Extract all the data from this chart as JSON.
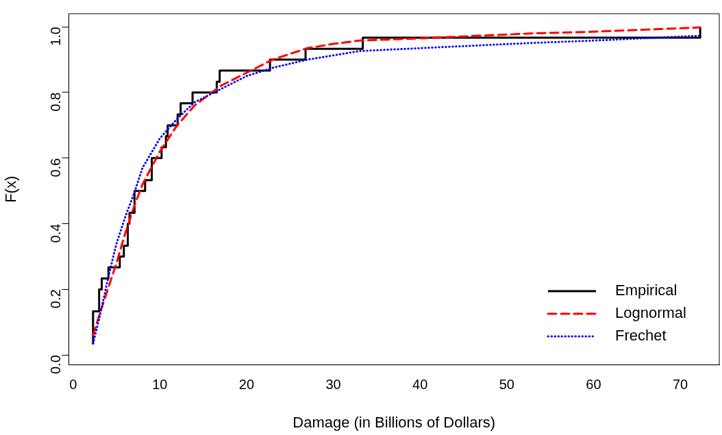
{
  "chart_data": {
    "type": "line",
    "xlabel": "Damage (in Billions of Dollars)",
    "ylabel": "F(x)",
    "xlim": [
      -0.5,
      74.5
    ],
    "xticks": [
      0,
      10,
      20,
      30,
      40,
      50,
      60,
      70
    ],
    "ylim": [
      -0.03,
      1.04
    ],
    "yticks": [
      {
        "value": 0,
        "label": "0.0"
      },
      0.2,
      0.4,
      0.6,
      0.8,
      {
        "value": 1,
        "label": "1.0"
      }
    ],
    "grid": false,
    "legend": "bottom right",
    "marker": "none",
    "series": [
      {
        "name": "Empirical",
        "type": "step",
        "color": "#000000",
        "line_style": "solid",
        "x": [
          2.3,
          2.3,
          3.0,
          3.3,
          4.07,
          5.38,
          5.85,
          6.3,
          6.5,
          7.08,
          8.3,
          9.07,
          10.2,
          10.7,
          10.9,
          12.05,
          12.4,
          13.77,
          16.56,
          16.9,
          22.7,
          26.8,
          33.4,
          72.3
        ],
        "values": [
          0.033,
          0.133,
          0.2,
          0.233,
          0.267,
          0.3,
          0.333,
          0.4,
          0.433,
          0.5,
          0.533,
          0.6,
          0.633,
          0.667,
          0.7,
          0.733,
          0.767,
          0.8,
          0.833,
          0.867,
          0.9,
          0.933,
          0.967,
          1.0
        ]
      },
      {
        "name": "Lognormal",
        "type": "line",
        "color": "#ff0000",
        "line_style": "dashed",
        "x": [
          2.3,
          3,
          4,
          5,
          6,
          7,
          8,
          9,
          10,
          12,
          14,
          17,
          20,
          23,
          27,
          30,
          33,
          40,
          53,
          60,
          72.3
        ],
        "values": [
          0.06,
          0.12,
          0.2,
          0.28,
          0.37,
          0.45,
          0.52,
          0.57,
          0.62,
          0.7,
          0.76,
          0.82,
          0.86,
          0.9,
          0.935,
          0.948,
          0.958,
          0.965,
          0.98,
          0.985,
          0.998
        ]
      },
      {
        "name": "Frechet",
        "type": "line",
        "color": "#0000ff",
        "line_style": "dotted",
        "x": [
          2.3,
          3,
          4,
          5,
          6,
          7,
          8,
          10,
          12,
          14,
          17,
          20,
          23,
          27,
          33,
          40,
          53,
          60,
          72.3
        ],
        "values": [
          0.035,
          0.11,
          0.23,
          0.34,
          0.42,
          0.49,
          0.57,
          0.66,
          0.72,
          0.77,
          0.81,
          0.85,
          0.875,
          0.9,
          0.926,
          0.935,
          0.951,
          0.958,
          0.973
        ]
      }
    ]
  }
}
